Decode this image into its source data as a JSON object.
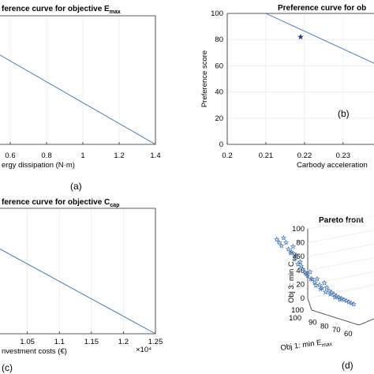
{
  "chart_data": [
    {
      "type": "line",
      "panel": "(a)",
      "title_parts": [
        "ference curve for objective E",
        "max"
      ],
      "xlabel": "ergy dissipation (N·m)",
      "ylabel": "",
      "xticks": [
        "0.6",
        "0.8",
        "1",
        "1.2",
        "1.4"
      ],
      "xlim": [
        0.5,
        1.4
      ],
      "series": [
        {
          "x": [
            0.5,
            1.4
          ],
          "y": [
            73,
            0
          ]
        }
      ],
      "ylim": [
        0,
        100
      ]
    },
    {
      "type": "line",
      "panel": "(b)",
      "title_parts": [
        "Preference curve for ob"
      ],
      "xlabel": "Carbody acceleration",
      "ylabel": "Preference score",
      "xticks": [
        "0.2",
        "0.21",
        "0.22",
        "0.23"
      ],
      "yticks": [
        "0",
        "20",
        "40",
        "60",
        "80",
        "100"
      ],
      "xlim": [
        0.2,
        0.238
      ],
      "ylim": [
        0,
        100
      ],
      "series": [
        {
          "x": [
            0.21,
            0.238
          ],
          "y": [
            100,
            62
          ]
        }
      ],
      "marker": {
        "x": 0.219,
        "y": 82
      }
    },
    {
      "type": "line",
      "panel": "(c)",
      "title_parts": [
        "ference curve for objective C",
        "cap"
      ],
      "xlabel": "nvestment costs (€)",
      "ylabel": "",
      "xticks": [
        "1",
        "1.05",
        "1.1",
        "1.15",
        "1.2",
        "1.25"
      ],
      "x_multiplier": "×10⁴",
      "xlim": [
        0.995,
        1.25
      ],
      "series": [
        {
          "x": [
            0.995,
            1.25
          ],
          "y": [
            71,
            0
          ]
        }
      ],
      "ylim": [
        0,
        100
      ]
    },
    {
      "type": "scatter",
      "panel": "(d)",
      "title_parts": [
        "Pareto front"
      ],
      "xlabel_parts": [
        "Obj 1: min E",
        "max"
      ],
      "zlabel_parts": [
        "Obj 3: min C",
        "cap"
      ],
      "zticks": [
        "100",
        "80",
        "60",
        "40",
        "20",
        "0"
      ],
      "xticks": [
        "90",
        "80",
        "70",
        "60"
      ],
      "yticks": [
        "100",
        "100"
      ],
      "points": [
        {
          "e": 96,
          "c": 22,
          "d": 0.1
        },
        {
          "e": 95,
          "c": 26,
          "d": 0.12
        },
        {
          "e": 94,
          "c": 30,
          "d": 0.14
        },
        {
          "e": 93,
          "c": 18,
          "d": 0.13
        },
        {
          "e": 92,
          "c": 24,
          "d": 0.16
        },
        {
          "e": 91,
          "c": 33,
          "d": 0.18
        },
        {
          "e": 90,
          "c": 38,
          "d": 0.2
        },
        {
          "e": 89,
          "c": 28,
          "d": 0.22
        },
        {
          "e": 88,
          "c": 44,
          "d": 0.25
        },
        {
          "e": 87,
          "c": 52,
          "d": 0.28
        },
        {
          "e": 86,
          "c": 48,
          "d": 0.3
        },
        {
          "e": 85,
          "c": 58,
          "d": 0.34
        },
        {
          "e": 84,
          "c": 62,
          "d": 0.38
        },
        {
          "e": 83,
          "c": 66,
          "d": 0.4
        },
        {
          "e": 82,
          "c": 60,
          "d": 0.44
        },
        {
          "e": 81,
          "c": 70,
          "d": 0.46
        },
        {
          "e": 80,
          "c": 74,
          "d": 0.5
        },
        {
          "e": 79,
          "c": 68,
          "d": 0.52
        },
        {
          "e": 78,
          "c": 76,
          "d": 0.55
        },
        {
          "e": 77,
          "c": 80,
          "d": 0.58
        },
        {
          "e": 76,
          "c": 72,
          "d": 0.6
        },
        {
          "e": 75,
          "c": 78,
          "d": 0.64
        },
        {
          "e": 74,
          "c": 82,
          "d": 0.68
        },
        {
          "e": 73,
          "c": 84,
          "d": 0.7
        },
        {
          "e": 72,
          "c": 86,
          "d": 0.74
        },
        {
          "e": 71,
          "c": 88,
          "d": 0.78
        },
        {
          "e": 70,
          "c": 89,
          "d": 0.82
        },
        {
          "e": 69,
          "c": 90,
          "d": 0.86
        },
        {
          "e": 68,
          "c": 91,
          "d": 0.9
        },
        {
          "e": 67,
          "c": 92,
          "d": 0.94
        },
        {
          "e": 66,
          "c": 93,
          "d": 0.97
        },
        {
          "e": 65,
          "c": 94,
          "d": 1.0
        },
        {
          "e": 64,
          "c": 95,
          "d": 1.04
        },
        {
          "e": 90,
          "c": 36,
          "d": 0.3
        },
        {
          "e": 88,
          "c": 40,
          "d": 0.34
        },
        {
          "e": 86,
          "c": 54,
          "d": 0.44
        },
        {
          "e": 84,
          "c": 64,
          "d": 0.52
        },
        {
          "e": 82,
          "c": 70,
          "d": 0.6
        },
        {
          "e": 80,
          "c": 78,
          "d": 0.66
        },
        {
          "e": 78,
          "c": 82,
          "d": 0.72
        },
        {
          "e": 76,
          "c": 85,
          "d": 0.78
        },
        {
          "e": 74,
          "c": 87,
          "d": 0.84
        },
        {
          "e": 72,
          "c": 90,
          "d": 0.9
        },
        {
          "e": 70,
          "c": 92,
          "d": 0.96
        }
      ]
    }
  ]
}
